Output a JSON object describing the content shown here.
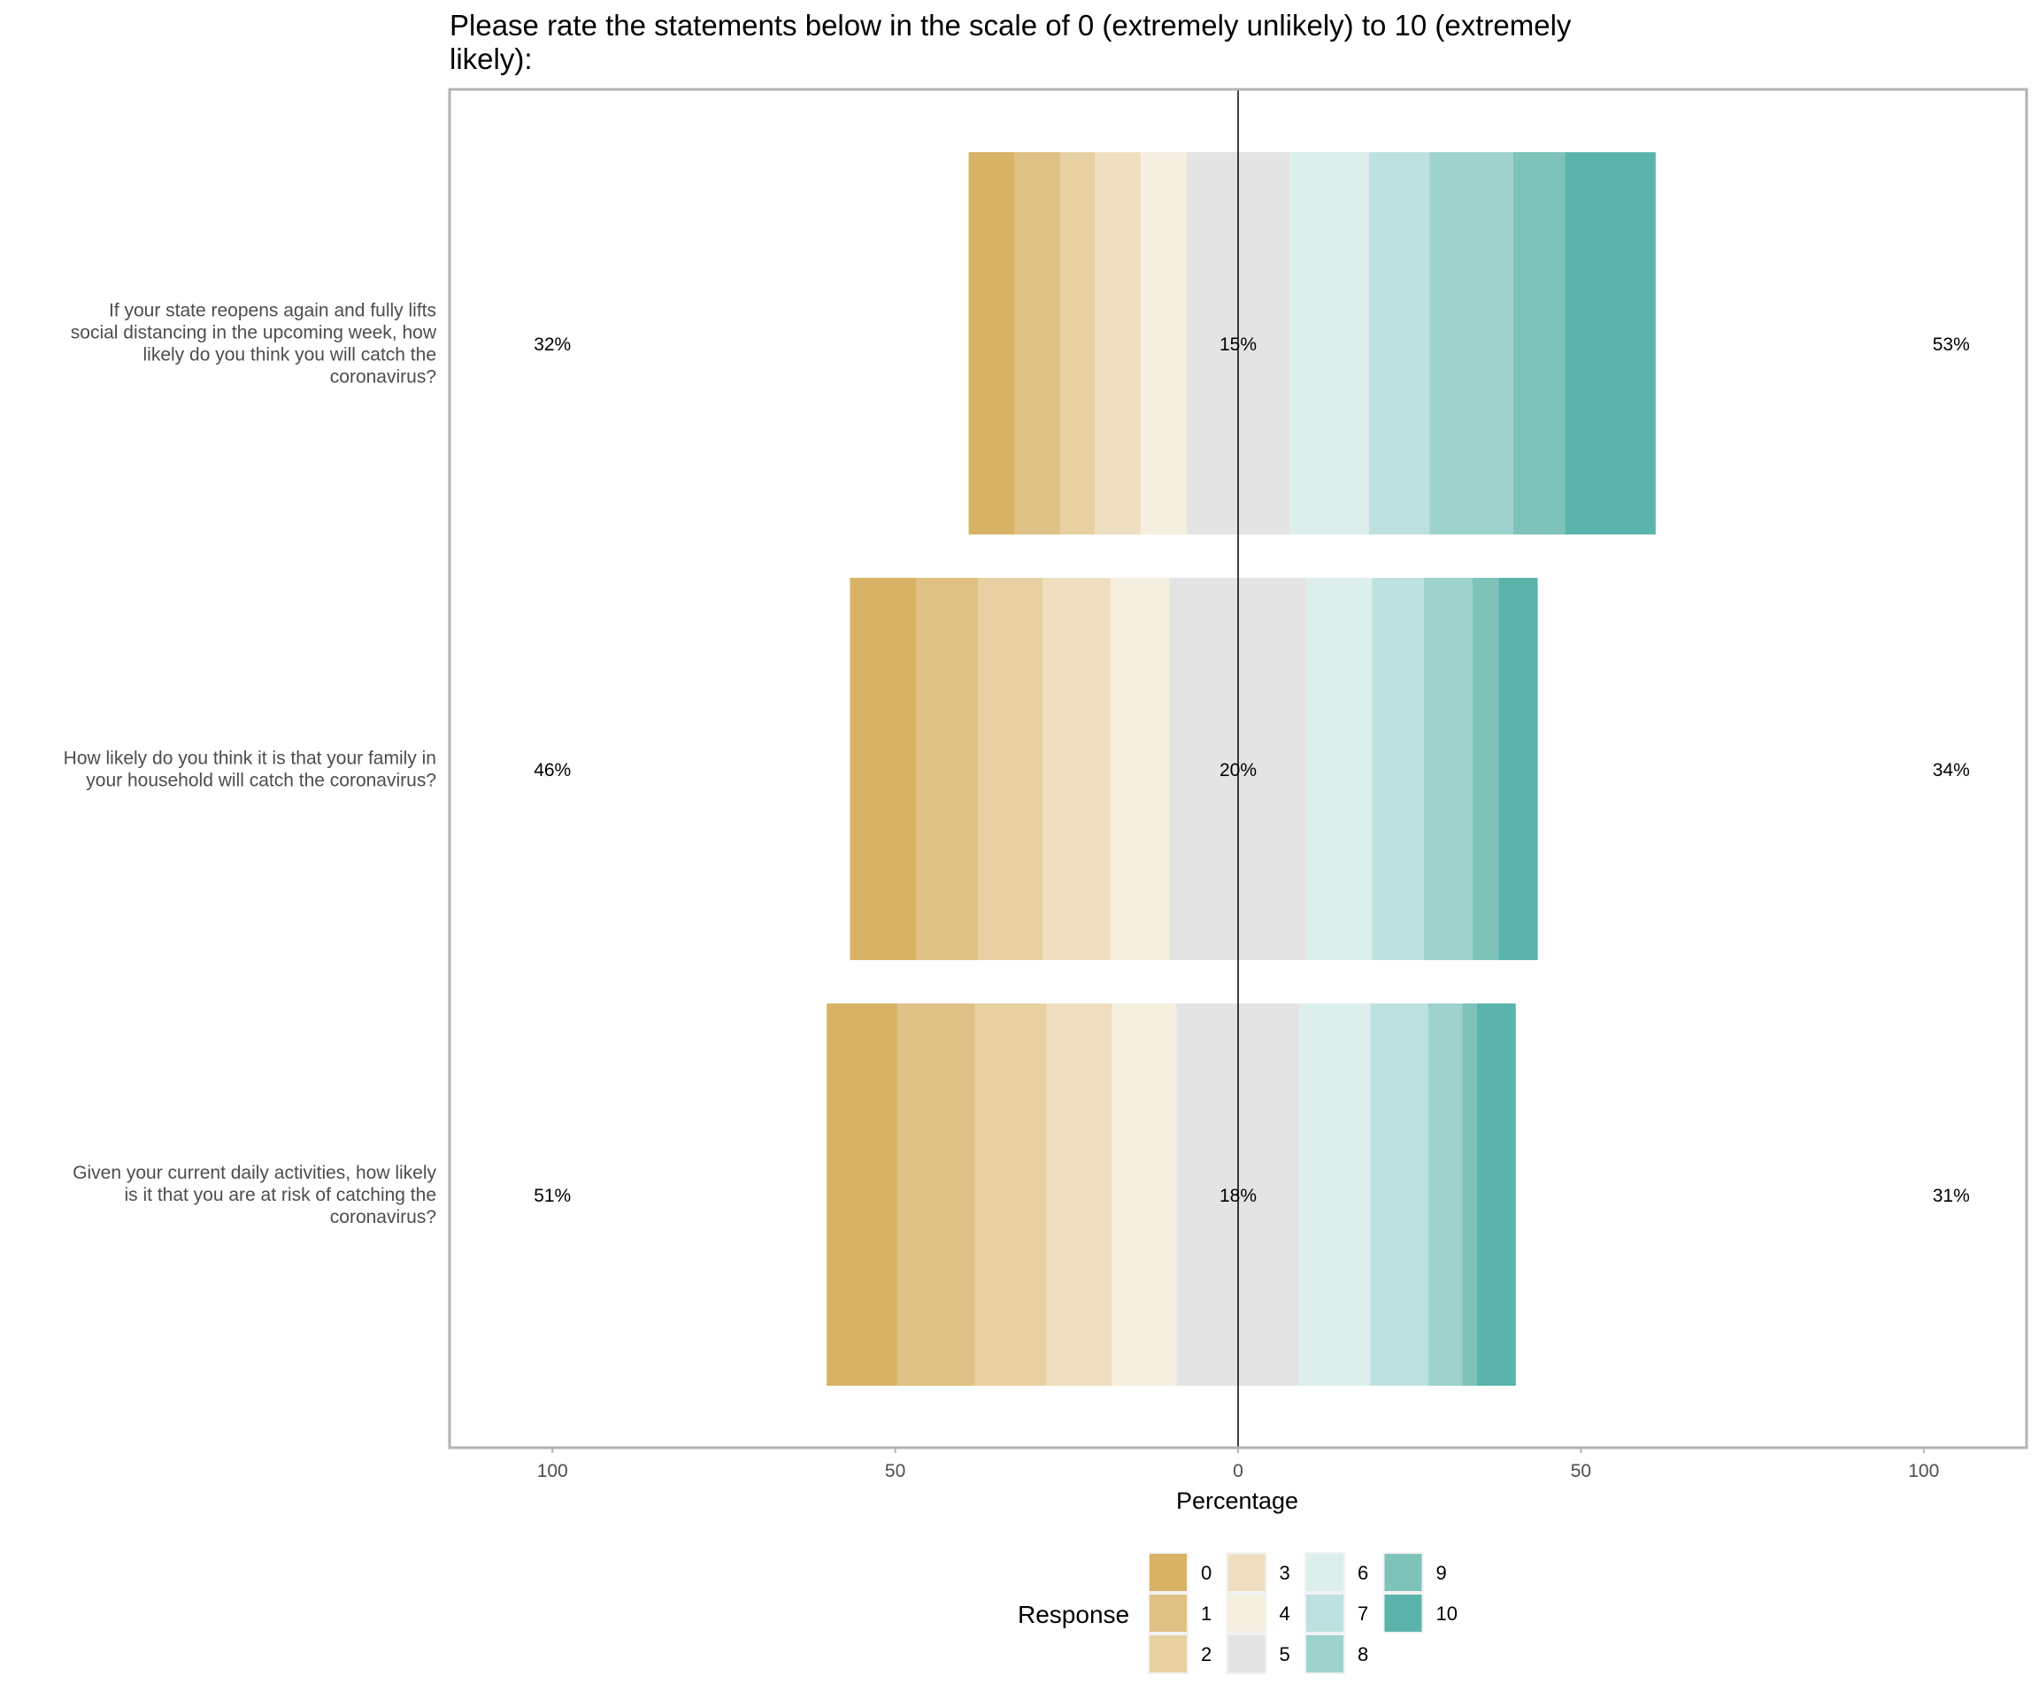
{
  "chart_data": {
    "type": "bar",
    "subtype": "diverging-stacked-likert",
    "title": "Please rate the statements below in the scale of 0 (extremely unlikely) to 10 (extremely likely):",
    "title_lines": [
      "Please rate the statements below in the scale of 0 (extremely unlikely) to 10 (extremely",
      "likely):"
    ],
    "xlabel": "Percentage",
    "ylabel": "",
    "xlim": [
      -115,
      115
    ],
    "x_ticks": [
      -100,
      -50,
      0,
      50,
      100
    ],
    "x_tick_labels": [
      "100",
      "50",
      "0",
      "50",
      "100"
    ],
    "grid": true,
    "legend": {
      "title": "Response",
      "placement": "bottom",
      "entries": [
        "0",
        "1",
        "2",
        "3",
        "4",
        "5",
        "6",
        "7",
        "8",
        "9",
        "10"
      ],
      "colors": [
        "#D8B365",
        "#DFC185",
        "#E7D1A2",
        "#EFDFC0",
        "#F5EFDF",
        "#E4E4E4",
        "#DCEFEC",
        "#BDE1DE",
        "#9DD3CC",
        "#7DC3BA",
        "#5AB4AC"
      ]
    },
    "categories": [
      "If your state reopens again and fully lifts social distancing in the upcoming week, how likely do you think you will catch the coronavirus?",
      "How likely do you think it is that your family in your household will catch the coronavirus?",
      "Given your current daily activities, how likely is it that you are at risk of catching the coronavirus?"
    ],
    "category_lines": [
      [
        "If your state reopens again and fully lifts",
        "social distancing in the upcoming week, how",
        "likely do you think you will catch the",
        "coronavirus?"
      ],
      [
        "How likely do you think it is that your family in",
        "your household will catch the coronavirus?"
      ],
      [
        "Given your current daily activities, how likely",
        "is it that you are at risk of catching the",
        "coronavirus?"
      ]
    ],
    "series": [
      {
        "name": "0",
        "values": [
          6.7,
          9.7,
          10.3
        ]
      },
      {
        "name": "1",
        "values": [
          6.7,
          9.0,
          11.3
        ]
      },
      {
        "name": "2",
        "values": [
          5.0,
          9.4,
          10.5
        ]
      },
      {
        "name": "3",
        "values": [
          6.7,
          9.9,
          9.5
        ]
      },
      {
        "name": "4",
        "values": [
          6.7,
          8.6,
          9.4
        ]
      },
      {
        "name": "5",
        "values": [
          15.0,
          20.0,
          18.0
        ]
      },
      {
        "name": "6",
        "values": [
          11.6,
          9.5,
          10.3
        ]
      },
      {
        "name": "7",
        "values": [
          8.8,
          7.6,
          8.4
        ]
      },
      {
        "name": "8",
        "values": [
          12.2,
          7.1,
          5.0
        ]
      },
      {
        "name": "9",
        "values": [
          7.6,
          3.8,
          2.1
        ]
      },
      {
        "name": "10",
        "values": [
          13.2,
          5.7,
          5.7
        ]
      }
    ],
    "summary_labels": {
      "low": [
        "32%",
        "46%",
        "51%"
      ],
      "neutral": [
        "15%",
        "20%",
        "18%"
      ],
      "high": [
        "53%",
        "34%",
        "31%"
      ]
    }
  }
}
